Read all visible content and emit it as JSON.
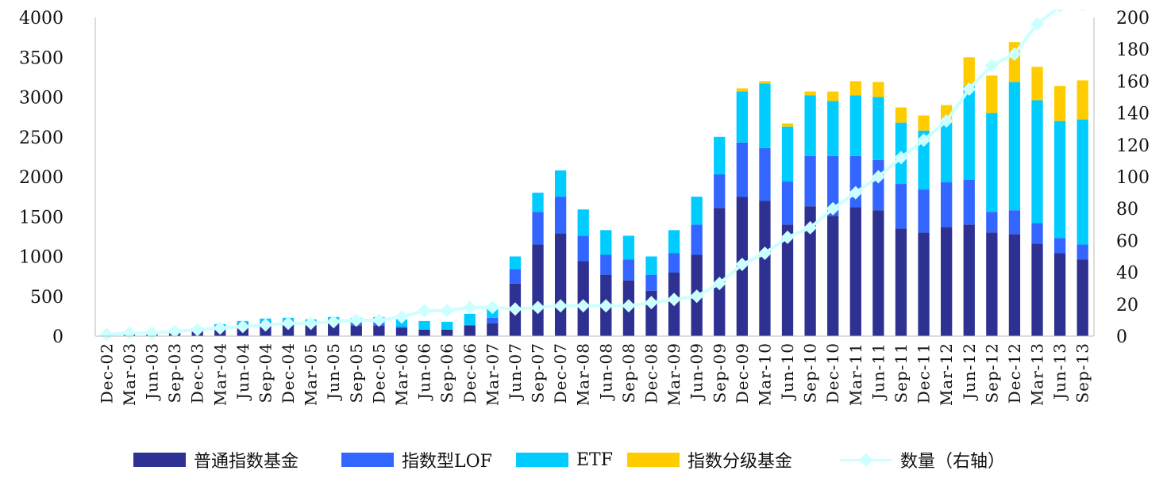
{
  "chart_data": {
    "type": "bar",
    "stacked": true,
    "categories": [
      "Dec-02",
      "Mar-03",
      "Jun-03",
      "Sep-03",
      "Dec-03",
      "Mar-04",
      "Jun-04",
      "Sep-04",
      "Dec-04",
      "Mar-05",
      "Jun-05",
      "Sep-05",
      "Dec-05",
      "Mar-06",
      "Jun-06",
      "Sep-06",
      "Dec-06",
      "Mar-07",
      "Jun-07",
      "Sep-07",
      "Dec-07",
      "Mar-08",
      "Jun-08",
      "Sep-08",
      "Dec-08",
      "Mar-09",
      "Jun-09",
      "Sep-09",
      "Dec-09",
      "Mar-10",
      "Jun-10",
      "Sep-10",
      "Dec-10",
      "Mar-11",
      "Jun-11",
      "Sep-11",
      "Dec-11",
      "Mar-12",
      "Jun-12",
      "Sep-12",
      "Dec-12",
      "Mar-13",
      "Jun-13",
      "Sep-13"
    ],
    "series": [
      {
        "name": "普通指数基金",
        "color": "#2e3192",
        "values": [
          20,
          30,
          40,
          70,
          80,
          120,
          150,
          170,
          180,
          130,
          160,
          130,
          130,
          100,
          80,
          80,
          130,
          160,
          660,
          1150,
          1290,
          940,
          770,
          700,
          570,
          800,
          1020,
          1610,
          1750,
          1700,
          1400,
          1630,
          1510,
          1620,
          1580,
          1350,
          1300,
          1370,
          1400,
          1300,
          1280,
          1160,
          1040,
          960
        ]
      },
      {
        "name": "指数型LOF",
        "color": "#3366ff",
        "values": [
          0,
          0,
          0,
          0,
          10,
          10,
          10,
          10,
          10,
          20,
          20,
          30,
          30,
          20,
          0,
          0,
          10,
          70,
          180,
          410,
          460,
          320,
          250,
          260,
          200,
          240,
          380,
          420,
          680,
          660,
          540,
          630,
          750,
          640,
          630,
          560,
          540,
          560,
          560,
          260,
          300,
          260,
          190,
          190
        ]
      },
      {
        "name": "ETF",
        "color": "#00ccff",
        "values": [
          0,
          0,
          0,
          0,
          10,
          20,
          30,
          40,
          40,
          60,
          60,
          70,
          80,
          90,
          110,
          100,
          140,
          120,
          160,
          240,
          330,
          330,
          310,
          300,
          230,
          290,
          350,
          470,
          640,
          810,
          690,
          760,
          690,
          760,
          790,
          770,
          740,
          770,
          1180,
          1240,
          1610,
          1540,
          1470,
          1570
        ]
      },
      {
        "name": "指数分级基金",
        "color": "#ffcc00",
        "values": [
          0,
          0,
          0,
          0,
          0,
          0,
          0,
          0,
          0,
          0,
          0,
          0,
          0,
          0,
          0,
          0,
          0,
          0,
          0,
          0,
          0,
          0,
          0,
          0,
          0,
          0,
          0,
          0,
          40,
          30,
          40,
          50,
          120,
          180,
          190,
          190,
          190,
          200,
          360,
          470,
          500,
          420,
          440,
          490
        ]
      }
    ],
    "line_series": {
      "name": "数量（右轴）",
      "color": "#ccffff",
      "values": [
        1,
        2,
        2,
        3,
        4,
        5,
        6,
        7,
        8,
        8,
        9,
        10,
        10,
        12,
        16,
        16,
        18,
        18,
        17,
        18,
        19,
        19,
        19,
        19,
        21,
        23,
        25,
        33,
        45,
        52,
        62,
        68,
        80,
        90,
        100,
        112,
        123,
        135,
        155,
        170,
        177,
        196,
        207,
        208
      ]
    },
    "y_left": {
      "min": 0,
      "max": 4000,
      "ticks": [
        "0",
        "500",
        "1000",
        "1500",
        "2000",
        "2500",
        "3000",
        "3500",
        "4000"
      ]
    },
    "y_right": {
      "min": 0,
      "max": 200,
      "ticks": [
        "0",
        "20",
        "40",
        "60",
        "80",
        "100",
        "120",
        "140",
        "160",
        "180",
        "200"
      ]
    },
    "grid": false,
    "legend_position": "bottom"
  }
}
